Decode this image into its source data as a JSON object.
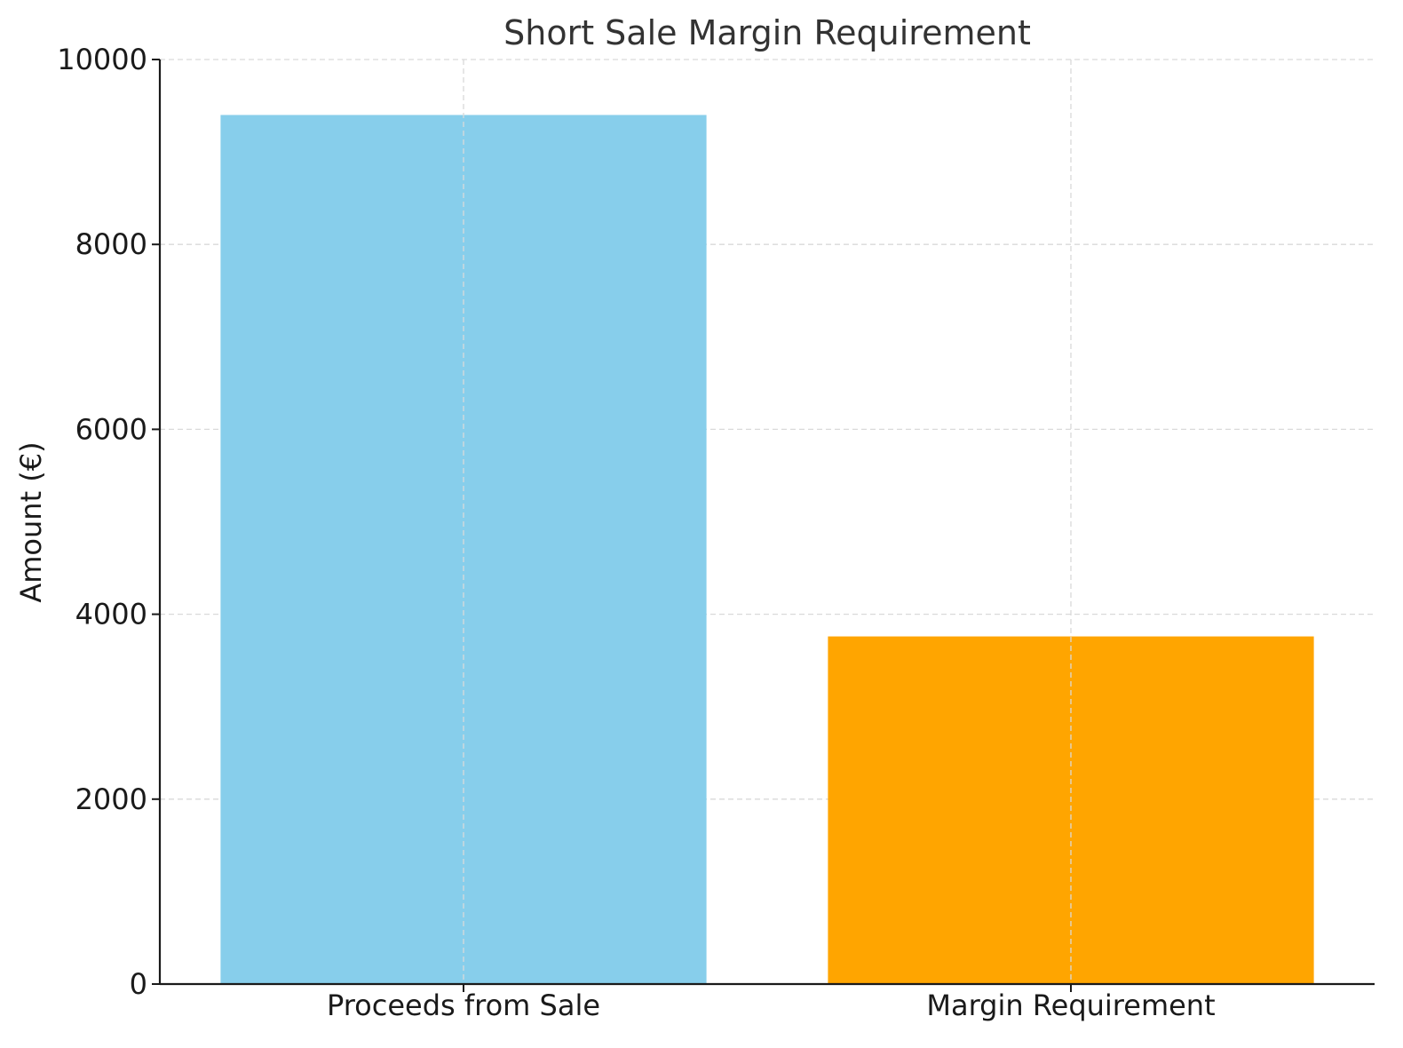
{
  "chart_data": {
    "type": "bar",
    "title": "Short Sale Margin Requirement",
    "xlabel": "",
    "ylabel": "Amount (€)",
    "categories": [
      "Proceeds from Sale",
      "Margin Requirement"
    ],
    "values": [
      9400,
      3760
    ],
    "colors": [
      "#87ceeb",
      "#ffa500"
    ],
    "ylim": [
      0,
      10000
    ],
    "yticks": [
      0,
      2000,
      4000,
      6000,
      8000,
      10000
    ],
    "grid": true
  }
}
